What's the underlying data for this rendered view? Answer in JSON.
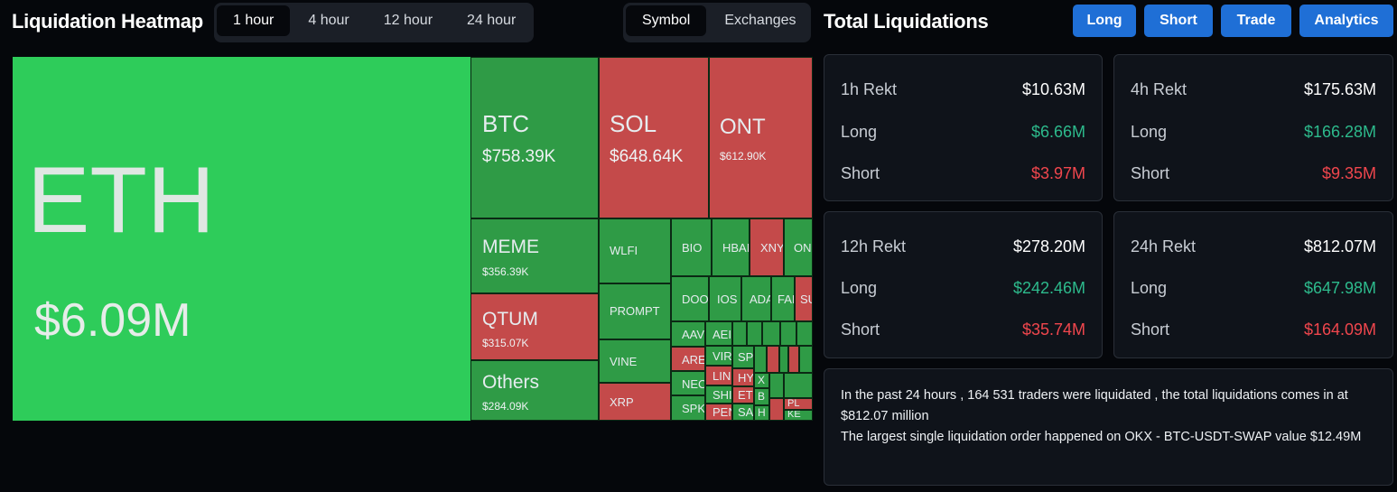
{
  "header": {
    "title": "Liquidation Heatmap",
    "time_tabs": [
      "1 hour",
      "4 hour",
      "12 hour",
      "24 hour"
    ],
    "active_time_tab": "1 hour",
    "view_tabs": [
      "Symbol",
      "Exchanges"
    ],
    "active_view_tab": "Symbol"
  },
  "right_header": {
    "title": "Total Liquidations",
    "buttons": [
      "Long",
      "Short",
      "Trade",
      "Analytics"
    ]
  },
  "heatmap": {
    "eth": {
      "symbol": "ETH",
      "value": "$6.09M"
    },
    "btc": {
      "symbol": "BTC",
      "value": "$758.39K"
    },
    "sol": {
      "symbol": "SOL",
      "value": "$648.64K"
    },
    "ont": {
      "symbol": "ONT",
      "value": "$612.90K"
    },
    "meme": {
      "symbol": "MEME",
      "value": "$356.39K"
    },
    "qtum": {
      "symbol": "QTUM",
      "value": "$315.07K"
    },
    "others": {
      "symbol": "Others",
      "value": "$284.09K"
    },
    "small": {
      "wlfi": "WLFI",
      "prompt": "PROMPT",
      "vine": "VINE",
      "xrp": "XRP",
      "bio": "BIO",
      "hba": "HBAI",
      "xny": "XNY",
      "on": "ON",
      "doo": "DOO",
      "ios": "IOS",
      "ada": "ADA",
      "fa": "FAI",
      "su": "SU",
      "aav": "AAV",
      "ae": "AEI",
      "are": "ARE",
      "vir": "VIR",
      "lin": "LIN",
      "nec": "NEC",
      "shi": "SHI",
      "spk": "SPK",
      "sp": "SP",
      "hy": "HY",
      "et": "ET",
      "sa": "SA",
      "pen": "PEN",
      "x": "X",
      "b": "B",
      "h": "H",
      "pl": "PL",
      "ke": "KE"
    }
  },
  "cards": [
    {
      "title": "1h Rekt",
      "total": "$10.63M",
      "long_label": "Long",
      "long": "$6.66M",
      "short_label": "Short",
      "short": "$3.97M"
    },
    {
      "title": "4h Rekt",
      "total": "$175.63M",
      "long_label": "Long",
      "long": "$166.28M",
      "short_label": "Short",
      "short": "$9.35M"
    },
    {
      "title": "12h Rekt",
      "total": "$278.20M",
      "long_label": "Long",
      "long": "$242.46M",
      "short_label": "Short",
      "short": "$35.74M"
    },
    {
      "title": "24h Rekt",
      "total": "$812.07M",
      "long_label": "Long",
      "long": "$647.98M",
      "short_label": "Short",
      "short": "$164.09M"
    }
  ],
  "summary": {
    "line1": "In the past 24 hours , 164 531 traders were liquidated , the total liquidations comes in at $812.07 million",
    "line2": "The largest single liquidation order happened on OKX - BTC-USDT-SWAP value $12.49M"
  },
  "colors": {
    "long_green": "#2dba8c",
    "short_red": "#f0464d",
    "button_blue": "#1f6fd6"
  }
}
